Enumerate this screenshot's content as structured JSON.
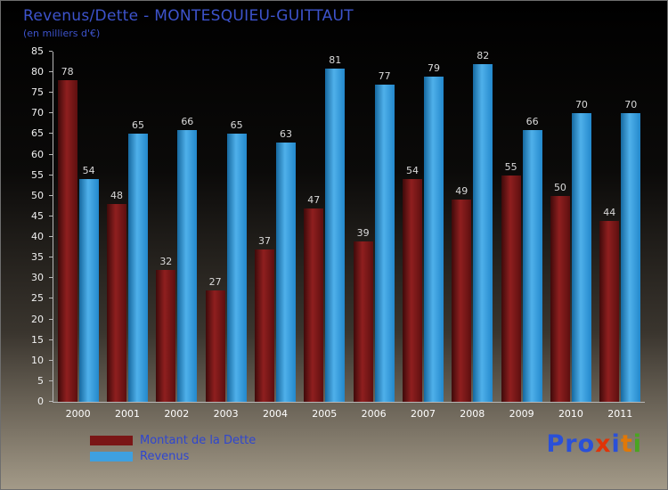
{
  "title": "Revenus/Dette - MONTESQUIEU-GUITTAUT",
  "subtitle": "(en milliers d'€)",
  "legend": [
    {
      "label": "Montant de la Dette",
      "color": "#7a1616"
    },
    {
      "label": "Revenus",
      "color": "#3ea0e0"
    }
  ],
  "logo": {
    "text": "Proxiti",
    "letters": [
      {
        "ch": "P",
        "color": "#2a50d8"
      },
      {
        "ch": "r",
        "color": "#2a50d8"
      },
      {
        "ch": "o",
        "color": "#2a50d8"
      },
      {
        "ch": "x",
        "color": "#e03408"
      },
      {
        "ch": "i",
        "color": "#2a50d8"
      },
      {
        "ch": "t",
        "color": "#e07808"
      },
      {
        "ch": "i",
        "color": "#4aa520"
      }
    ]
  },
  "chart_data": {
    "type": "bar",
    "title": "Revenus/Dette - MONTESQUIEU-GUITTAUT",
    "subtitle": "(en milliers d'€)",
    "categories": [
      "2000",
      "2001",
      "2002",
      "2003",
      "2004",
      "2005",
      "2006",
      "2007",
      "2008",
      "2009",
      "2010",
      "2011"
    ],
    "series": [
      {
        "name": "Montant de la Dette",
        "color": "#7a1616",
        "values": [
          78,
          48,
          32,
          27,
          37,
          47,
          39,
          54,
          49,
          55,
          50,
          44
        ]
      },
      {
        "name": "Revenus",
        "color": "#3ea0e0",
        "values": [
          54,
          65,
          66,
          65,
          63,
          81,
          77,
          79,
          82,
          66,
          70,
          70
        ]
      }
    ],
    "ylim": [
      0,
      85
    ],
    "ytick_step": 5,
    "grid": false,
    "legend_position": "bottom-left"
  }
}
